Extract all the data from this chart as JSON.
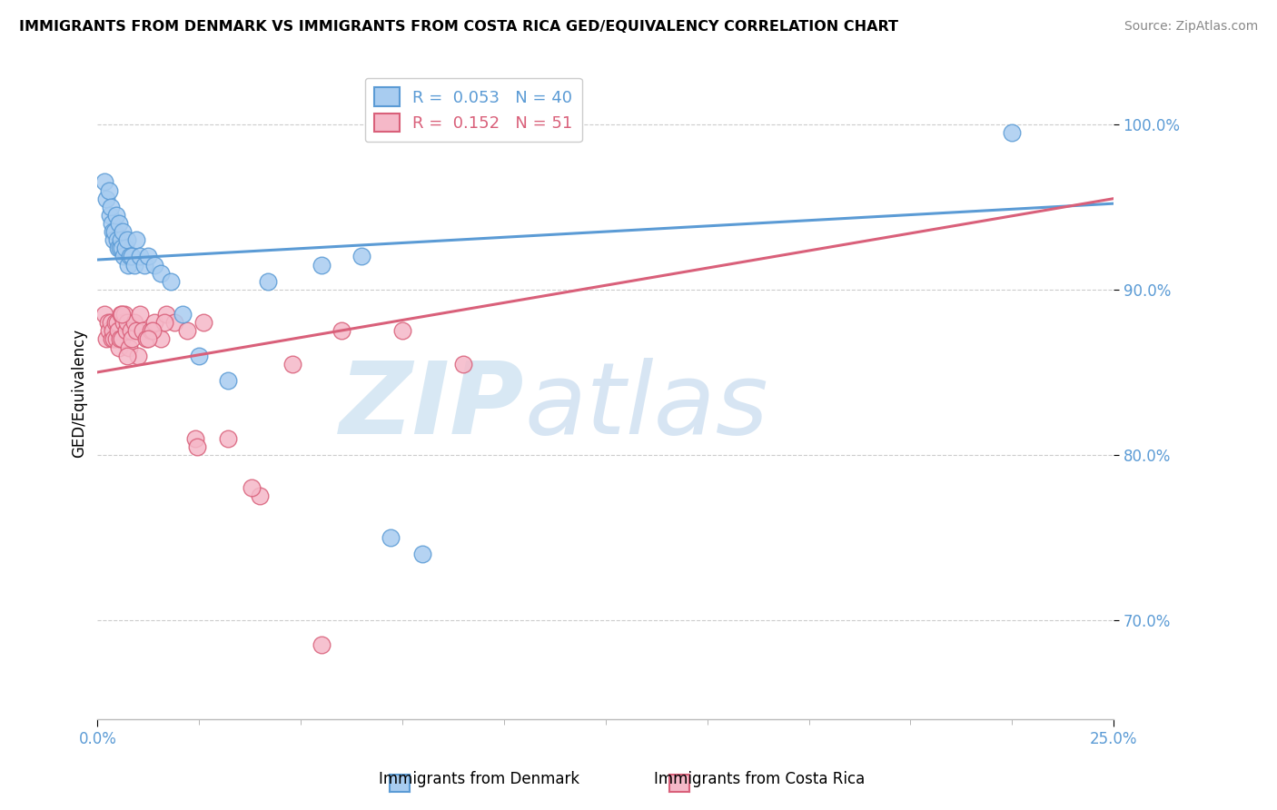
{
  "title": "IMMIGRANTS FROM DENMARK VS IMMIGRANTS FROM COSTA RICA GED/EQUIVALENCY CORRELATION CHART",
  "source": "Source: ZipAtlas.com",
  "ylabel": "GED/Equivalency",
  "xlim": [
    0.0,
    25.0
  ],
  "ylim": [
    64.0,
    103.5
  ],
  "yticks": [
    70.0,
    80.0,
    90.0,
    100.0
  ],
  "ytick_labels": [
    "70.0%",
    "80.0%",
    "90.0%",
    "100.0%"
  ],
  "denmark_color": "#A8CCF0",
  "costarica_color": "#F5B8C8",
  "denmark_line_color": "#5B9BD5",
  "costarica_line_color": "#D9607A",
  "legend_denmark_r": "0.053",
  "legend_denmark_n": "40",
  "legend_costarica_r": "0.152",
  "legend_costarica_n": "51",
  "denmark_trendline_x": [
    0.0,
    25.0
  ],
  "denmark_trendline_y": [
    91.8,
    95.2
  ],
  "costarica_trendline_x": [
    0.0,
    25.0
  ],
  "costarica_trendline_y": [
    85.0,
    95.5
  ],
  "denmark_scatter_x": [
    0.18,
    0.22,
    0.28,
    0.3,
    0.33,
    0.35,
    0.37,
    0.4,
    0.42,
    0.45,
    0.48,
    0.5,
    0.52,
    0.55,
    0.57,
    0.6,
    0.62,
    0.65,
    0.68,
    0.72,
    0.75,
    0.8,
    0.85,
    0.9,
    0.95,
    1.05,
    1.15,
    1.25,
    1.4,
    1.55,
    1.8,
    2.1,
    2.5,
    3.2,
    4.2,
    5.5,
    6.5,
    7.2,
    22.5,
    8.0
  ],
  "denmark_scatter_y": [
    96.5,
    95.5,
    96.0,
    94.5,
    95.0,
    94.0,
    93.5,
    93.0,
    93.5,
    94.5,
    93.0,
    92.5,
    94.0,
    92.5,
    93.0,
    92.5,
    93.5,
    92.0,
    92.5,
    93.0,
    91.5,
    92.0,
    92.0,
    91.5,
    93.0,
    92.0,
    91.5,
    92.0,
    91.5,
    91.0,
    90.5,
    88.5,
    86.0,
    84.5,
    90.5,
    91.5,
    92.0,
    75.0,
    99.5,
    74.0
  ],
  "costarica_scatter_x": [
    0.18,
    0.22,
    0.25,
    0.28,
    0.32,
    0.35,
    0.38,
    0.4,
    0.43,
    0.46,
    0.48,
    0.5,
    0.53,
    0.55,
    0.58,
    0.6,
    0.63,
    0.66,
    0.7,
    0.73,
    0.78,
    0.82,
    0.85,
    0.9,
    0.95,
    1.0,
    1.05,
    1.1,
    1.2,
    1.3,
    1.4,
    1.55,
    1.7,
    1.9,
    2.2,
    2.6,
    3.2,
    4.0,
    4.8,
    6.0,
    2.4,
    2.45,
    1.65,
    1.35,
    0.72,
    0.6,
    3.8,
    1.25,
    7.5,
    5.5,
    9.0
  ],
  "costarica_scatter_y": [
    88.5,
    87.0,
    88.0,
    87.5,
    88.0,
    87.0,
    87.5,
    87.0,
    88.0,
    87.0,
    88.0,
    87.5,
    86.5,
    87.0,
    88.5,
    87.0,
    88.0,
    88.5,
    87.5,
    88.0,
    86.5,
    87.5,
    87.0,
    88.0,
    87.5,
    86.0,
    88.5,
    87.5,
    87.0,
    87.5,
    88.0,
    87.0,
    88.5,
    88.0,
    87.5,
    88.0,
    81.0,
    77.5,
    85.5,
    87.5,
    81.0,
    80.5,
    88.0,
    87.5,
    86.0,
    88.5,
    78.0,
    87.0,
    87.5,
    68.5,
    85.5
  ],
  "watermark_zip": "ZIP",
  "watermark_atlas": "atlas",
  "background_color": "#FFFFFF",
  "grid_color": "#CCCCCC",
  "title_fontsize": 11.5,
  "source_fontsize": 10,
  "tick_fontsize": 12,
  "ylabel_fontsize": 12
}
